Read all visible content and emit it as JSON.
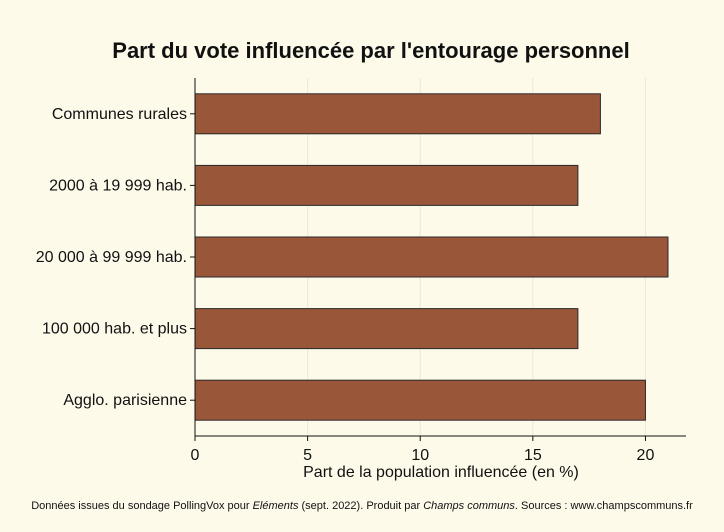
{
  "colors": {
    "background": "#fdfaea",
    "bar_fill": "#9a5638",
    "bar_stroke": "#2a2a2a",
    "grid": "#ece8d8"
  },
  "chart_data": {
    "type": "bar",
    "orientation": "horizontal",
    "title": "Part du vote influencée par l'entourage personnel",
    "xlabel": "Part de la population influencée (en %)",
    "ylabel": "",
    "categories": [
      "Communes rurales",
      "2000 à 19 999 hab.",
      "20 000 à 99 999 hab.",
      "100 000 hab. et plus",
      "Agglo. parisienne"
    ],
    "values": [
      18,
      17,
      21,
      17,
      20
    ],
    "xlim": [
      0,
      21.8
    ],
    "xticks": [
      "0",
      "5",
      "10",
      "15",
      "20"
    ],
    "grid": true,
    "legend": "none"
  },
  "footer": {
    "part1": "Données issues du sondage PollingVox pour ",
    "italic1": "Eléments",
    "part2": " (sept. 2022). Produit par ",
    "italic2": "Champs communs",
    "part3": ". Sources : www.champscommuns.fr"
  }
}
